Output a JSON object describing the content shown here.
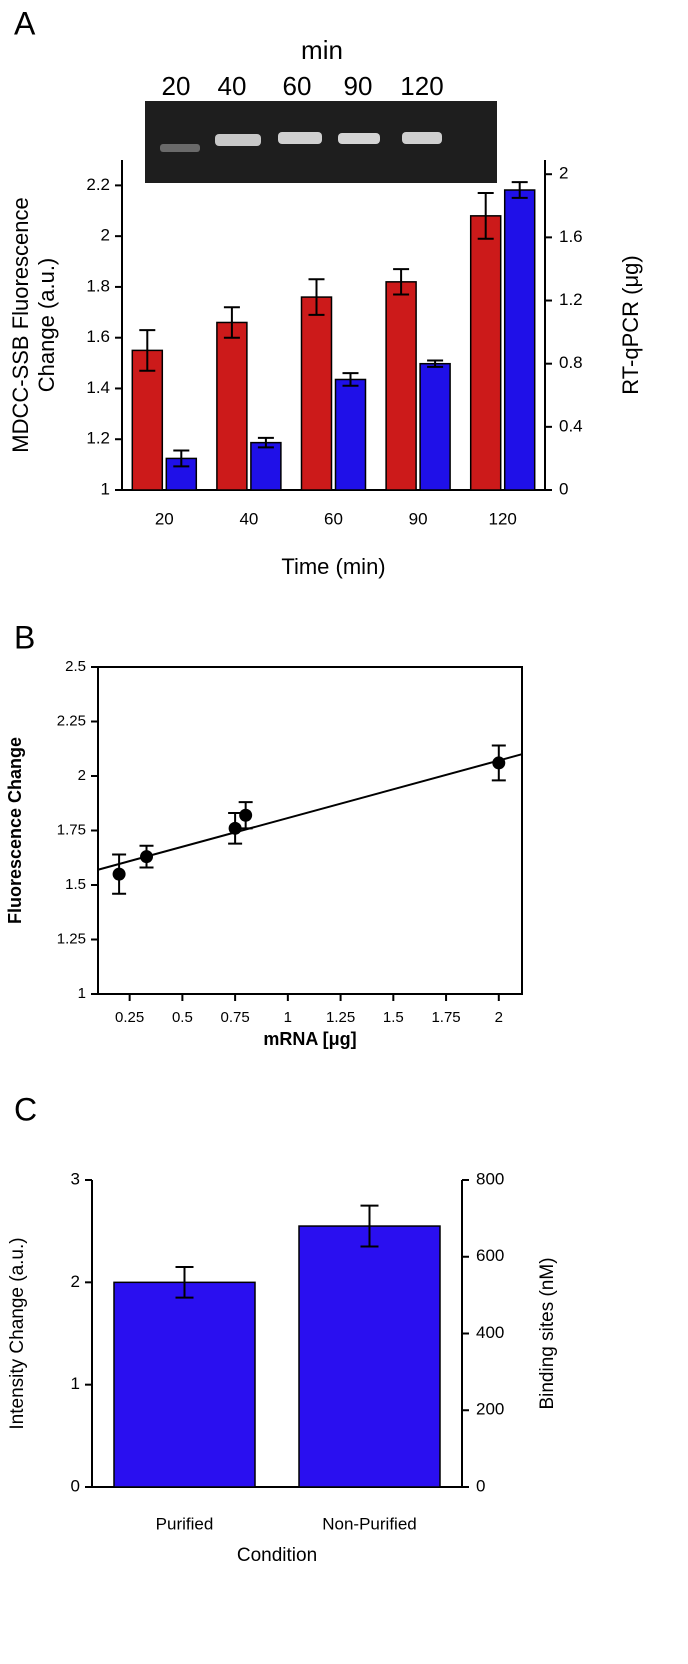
{
  "chart_data": [
    {
      "type": "bar",
      "panel": "A",
      "gel_label": "min",
      "gel_lanes": [
        "20",
        "40",
        "60",
        "90",
        "120"
      ],
      "xlabel": "Time (min)",
      "ylabel": [
        "MDCC-SSB Fluorescence",
        "Change (a.u.)"
      ],
      "y2label": "RT-qPCR (μg)",
      "categories": [
        "20",
        "40",
        "60",
        "90",
        "120"
      ],
      "ylim": [
        1,
        2.3
      ],
      "yticks": [
        1,
        1.2,
        1.4,
        1.6,
        1.8,
        2,
        2.2
      ],
      "y2lim": [
        0,
        2.09
      ],
      "y2ticks": [
        0,
        0.4,
        0.8,
        1.2,
        1.6,
        2
      ],
      "series": [
        {
          "color": "#cc1a1a",
          "values": [
            1.55,
            1.66,
            1.76,
            1.82,
            2.08
          ],
          "errors": [
            0.08,
            0.06,
            0.07,
            0.05,
            0.09
          ]
        },
        {
          "color": "#1f10e8",
          "axis": "y2",
          "values": [
            0.2,
            0.3,
            0.7,
            0.8,
            1.9
          ],
          "errors": [
            0.05,
            0.03,
            0.04,
            0.02,
            0.05
          ]
        }
      ]
    },
    {
      "type": "scatter",
      "panel": "B",
      "xlabel": "mRNA [μg]",
      "ylabel": "Fluorescence Change",
      "xlim": [
        0.1,
        2.11
      ],
      "xticks": [
        0.25,
        0.5,
        0.75,
        1,
        1.25,
        1.5,
        1.75,
        2
      ],
      "ylim": [
        1,
        2.5
      ],
      "yticks": [
        1,
        1.25,
        1.5,
        1.75,
        2,
        2.25,
        2.5
      ],
      "x": [
        0.2,
        0.33,
        0.75,
        0.8,
        2
      ],
      "series": [
        {
          "color": "#000000",
          "values": [
            1.55,
            1.63,
            1.76,
            1.82,
            2.06
          ],
          "errors": [
            0.09,
            0.05,
            0.07,
            0.06,
            0.08
          ]
        }
      ],
      "fit": {
        "x": [
          0.1,
          2.11
        ],
        "y": [
          1.57,
          2.1
        ]
      }
    },
    {
      "type": "bar",
      "panel": "C",
      "xlabel": "Condition",
      "ylabel": "Intensity Change (a.u.)",
      "y2label": "Binding sites (nM)",
      "categories": [
        "Purified",
        "Non-Purified"
      ],
      "ylim": [
        0,
        3
      ],
      "yticks": [
        0,
        1,
        2,
        3
      ],
      "y2lim": [
        0,
        800
      ],
      "y2ticks": [
        0,
        200,
        400,
        600,
        800
      ],
      "series": [
        {
          "color": "#2a0ff0",
          "values": [
            2.0,
            2.55
          ],
          "errors": [
            0.15,
            0.2
          ]
        }
      ]
    }
  ]
}
